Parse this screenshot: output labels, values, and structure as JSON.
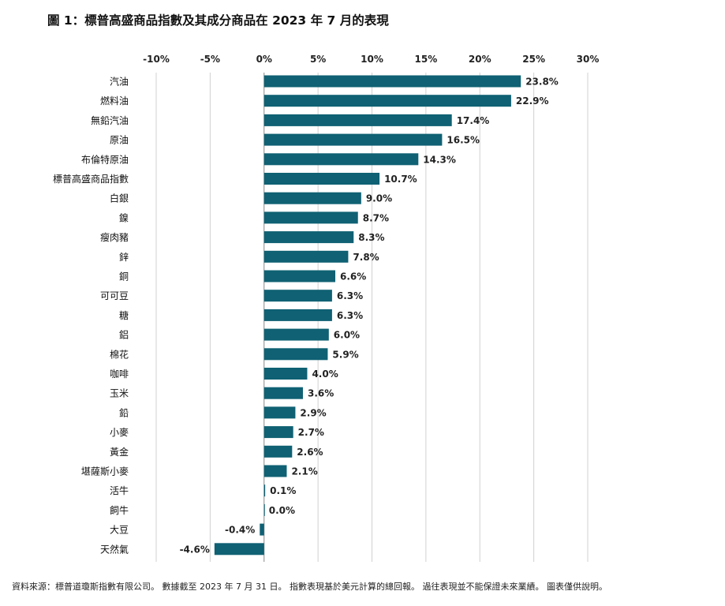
{
  "title": "圖 1：標普高盛商品指數及其成分商品在 2023 年 7 月的表現",
  "footnote": "資料來源：標普道瓊斯指數有限公司。 數據截至 2023 年 7 月 31 日。 指數表現基於美元計算的總回報。 過往表現並不能保證未來業績。 圖表僅供說明。",
  "colors": {
    "bar": "#0f6173",
    "grid": "#d0d0d0",
    "axis": "#888888"
  },
  "chart_data": {
    "type": "bar",
    "orientation": "horizontal",
    "xlim": [
      -10,
      30
    ],
    "xticks": [
      -10,
      -5,
      0,
      5,
      10,
      15,
      20,
      25,
      30
    ],
    "xtick_labels": [
      "-10%",
      "-5%",
      "0%",
      "5%",
      "10%",
      "15%",
      "20%",
      "25%",
      "30%"
    ],
    "xaxis_position": "top",
    "grid": true,
    "categories": [
      "汽油",
      "燃料油",
      "無鉛汽油",
      "原油",
      "布倫特原油",
      "標普高盛商品指數",
      "白銀",
      "鎳",
      "瘦肉豬",
      "鋅",
      "銅",
      "可可豆",
      "糖",
      "鋁",
      "棉花",
      "咖啡",
      "玉米",
      "鉛",
      "小麥",
      "黃金",
      "堪薩斯小麥",
      "活牛",
      "飼牛",
      "大豆",
      "天然氣"
    ],
    "values": [
      23.8,
      22.9,
      17.4,
      16.5,
      14.3,
      10.7,
      9.0,
      8.7,
      8.3,
      7.8,
      6.6,
      6.3,
      6.3,
      6.0,
      5.9,
      4.0,
      3.6,
      2.9,
      2.7,
      2.6,
      2.1,
      0.1,
      0.0,
      -0.4,
      -4.6
    ],
    "value_labels": [
      "23.8%",
      "22.9%",
      "17.4%",
      "16.5%",
      "14.3%",
      "10.7%",
      "9.0%",
      "8.7%",
      "8.3%",
      "7.8%",
      "6.6%",
      "6.3%",
      "6.3%",
      "6.0%",
      "5.9%",
      "4.0%",
      "3.6%",
      "2.9%",
      "2.7%",
      "2.6%",
      "2.1%",
      "0.1%",
      "0.0%",
      "-0.4%",
      "-4.6%"
    ]
  }
}
